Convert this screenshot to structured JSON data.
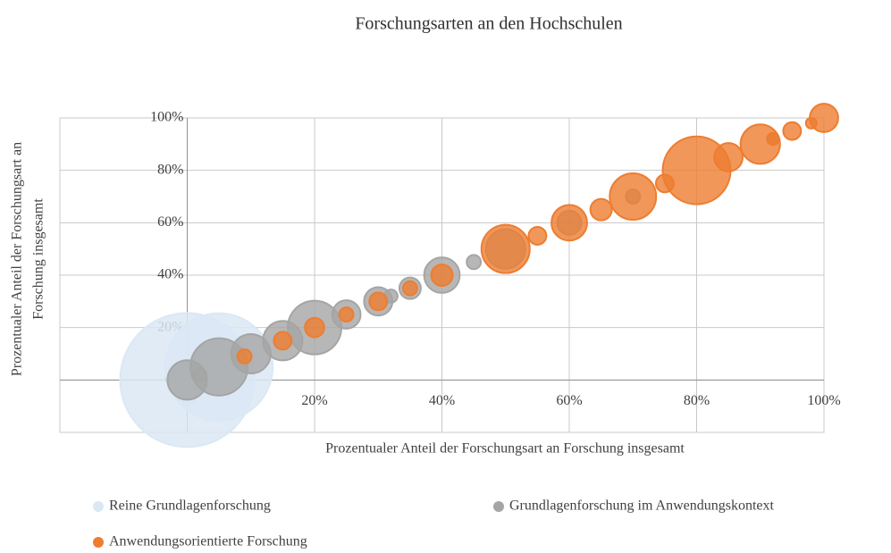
{
  "chart_data": {
    "type": "bubble",
    "title": "Forschungsarten an den Hochschulen",
    "xlabel": "Prozentualer  Anteil der Forschungsart an Forschung insgesamt",
    "ylabel": [
      "Prozentualer  Anteil der Forschungsart an",
      "Forschung insgesamt"
    ],
    "xlim": [
      -20,
      100
    ],
    "ylim": [
      -20,
      100
    ],
    "xticks": [
      {
        "value": 0,
        "label": "0%"
      },
      {
        "value": 20,
        "label": "20%"
      },
      {
        "value": 40,
        "label": "40%"
      },
      {
        "value": 60,
        "label": "60%"
      },
      {
        "value": 80,
        "label": "80%"
      },
      {
        "value": 100,
        "label": "100%"
      }
    ],
    "yticks": [
      {
        "value": 0,
        "label": "0%"
      },
      {
        "value": 20,
        "label": "20%"
      },
      {
        "value": 40,
        "label": "40%"
      },
      {
        "value": 60,
        "label": "60%"
      },
      {
        "value": 80,
        "label": "80%"
      },
      {
        "value": 100,
        "label": "100%"
      }
    ],
    "grid": true,
    "series": [
      {
        "name": "Reine Grundlagenforschung",
        "color": "#dae8f5",
        "x": [
          0,
          5
        ],
        "y": [
          0,
          5
        ],
        "sizes": [
          625,
          400
        ]
      },
      {
        "name": "Grundlagenforschung im Anwendungskontext",
        "color": "#a5a5a5",
        "x": [
          0,
          2,
          5,
          10,
          15,
          20,
          25,
          30,
          32,
          35,
          40,
          45,
          50,
          60,
          70,
          92
        ],
        "y": [
          0,
          2,
          5,
          10,
          15,
          20,
          25,
          30,
          32,
          35,
          40,
          45,
          50,
          60,
          70,
          92
        ],
        "sizes": [
          54,
          6,
          114,
          54,
          54,
          100,
          28,
          28,
          6,
          16,
          44,
          7,
          54,
          20,
          7,
          5
        ]
      },
      {
        "name": "Anwendungsorientierte Forschung",
        "color": "#ed7d31",
        "x": [
          9,
          15,
          20,
          25,
          30,
          35,
          40,
          50,
          55,
          60,
          65,
          70,
          75,
          80,
          85,
          90,
          92,
          95,
          98,
          100
        ],
        "y": [
          9,
          15,
          20,
          25,
          30,
          35,
          40,
          50,
          55,
          60,
          65,
          70,
          75,
          80,
          85,
          90,
          92,
          95,
          98,
          100
        ],
        "sizes": [
          7,
          11,
          13,
          7,
          11,
          7,
          16,
          81,
          11,
          44,
          16,
          75,
          11,
          160,
          28,
          54,
          5,
          11,
          4,
          28
        ]
      }
    ]
  }
}
